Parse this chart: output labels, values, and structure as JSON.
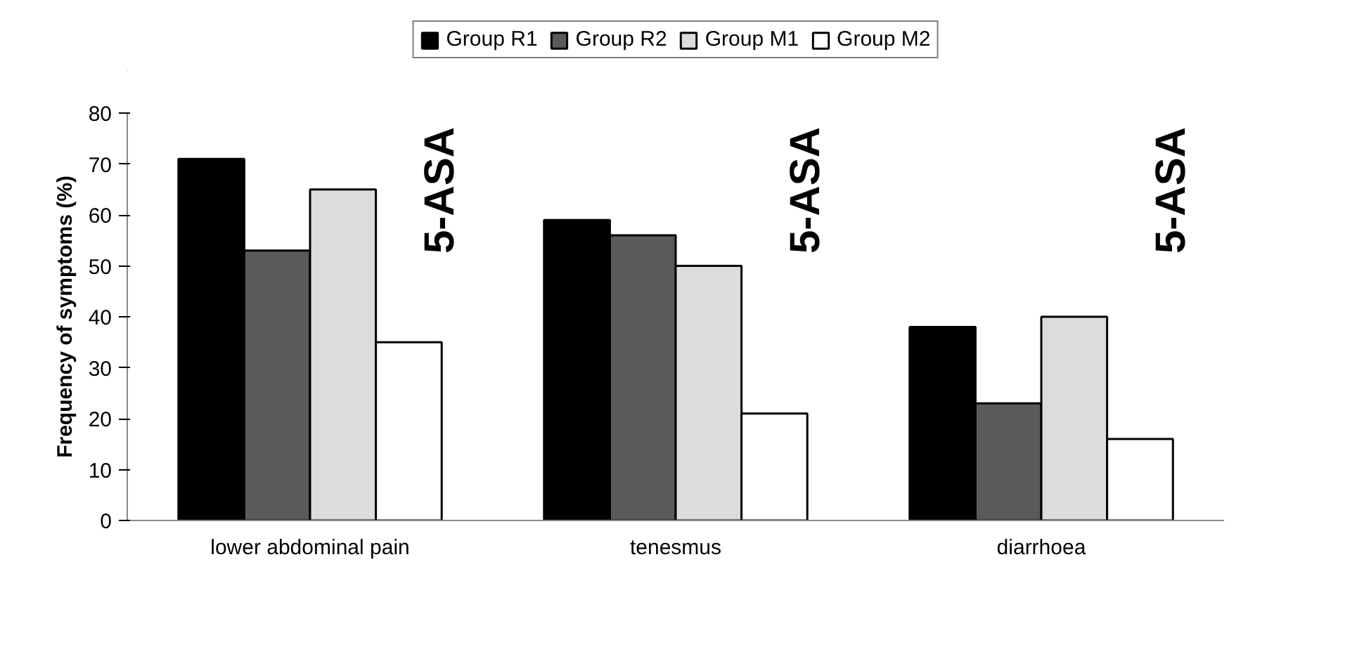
{
  "chart_data": {
    "type": "bar",
    "ylabel": "Frequency of symptoms (%)",
    "categories": [
      "lower abdominal pain",
      "tenesmus",
      "diarrhoea"
    ],
    "series": [
      {
        "name": "Group R1",
        "color": "#000000",
        "values": [
          71,
          59,
          38
        ]
      },
      {
        "name": "Group R2",
        "color": "#5a5a5a",
        "values": [
          53,
          56,
          23
        ]
      },
      {
        "name": "Group M1",
        "color": "#dcdcdc",
        "values": [
          65,
          50,
          40
        ]
      },
      {
        "name": "Group M2",
        "color": "#ffffff",
        "values": [
          35,
          21,
          16
        ]
      }
    ],
    "ylim": [
      0,
      80
    ],
    "yticks": [
      0,
      10,
      20,
      30,
      40,
      50,
      60,
      70,
      80
    ],
    "annotations": [
      "5-ASA",
      "5-ASA",
      "5-ASA"
    ],
    "grid": false,
    "legend": "top"
  }
}
